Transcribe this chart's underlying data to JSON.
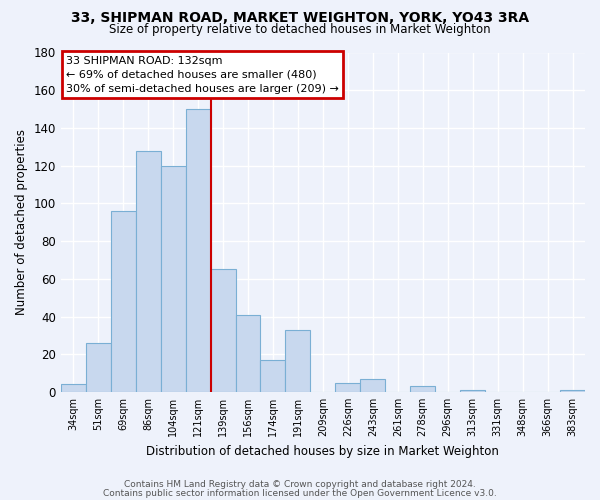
{
  "title": "33, SHIPMAN ROAD, MARKET WEIGHTON, YORK, YO43 3RA",
  "subtitle": "Size of property relative to detached houses in Market Weighton",
  "xlabel": "Distribution of detached houses by size in Market Weighton",
  "ylabel": "Number of detached properties",
  "bar_labels": [
    "34sqm",
    "51sqm",
    "69sqm",
    "86sqm",
    "104sqm",
    "121sqm",
    "139sqm",
    "156sqm",
    "174sqm",
    "191sqm",
    "209sqm",
    "226sqm",
    "243sqm",
    "261sqm",
    "278sqm",
    "296sqm",
    "313sqm",
    "331sqm",
    "348sqm",
    "366sqm",
    "383sqm"
  ],
  "bar_values": [
    4,
    26,
    96,
    128,
    120,
    150,
    65,
    41,
    17,
    33,
    0,
    5,
    7,
    0,
    3,
    0,
    1,
    0,
    0,
    0,
    1
  ],
  "bar_color": "#c8d8ee",
  "bar_edge_color": "#7aafd4",
  "vline_x": 5.5,
  "vline_color": "#cc0000",
  "annotation_title": "33 SHIPMAN ROAD: 132sqm",
  "annotation_line1": "← 69% of detached houses are smaller (480)",
  "annotation_line2": "30% of semi-detached houses are larger (209) →",
  "annotation_box_color": "#ffffff",
  "annotation_box_edge": "#cc0000",
  "ylim": [
    0,
    180
  ],
  "yticks": [
    0,
    20,
    40,
    60,
    80,
    100,
    120,
    140,
    160,
    180
  ],
  "footer1": "Contains HM Land Registry data © Crown copyright and database right 2024.",
  "footer2": "Contains public sector information licensed under the Open Government Licence v3.0.",
  "bg_color": "#eef2fb"
}
